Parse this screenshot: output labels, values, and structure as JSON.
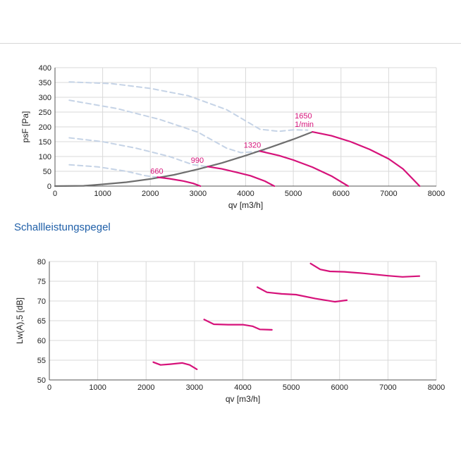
{
  "section_title": "Schallleistungspegel",
  "colors": {
    "curve": "#d6127a",
    "system_line": "#6e6e6e",
    "dashed": "#c5d3e6",
    "grid": "#d9d9d9",
    "label": "#d6127a",
    "title": "#1f5fa8"
  },
  "chart_data": [
    {
      "type": "line",
      "title": "",
      "xlabel": "qv [m3/h]",
      "ylabel": "psF [Pa]",
      "xlim": [
        0,
        8000
      ],
      "ylim": [
        0,
        400
      ],
      "grid": true,
      "xticks": [
        "0",
        "1000",
        "2000",
        "3000",
        "4000",
        "5000",
        "6000",
        "7000",
        "8000"
      ],
      "yticks": [
        "0",
        "50",
        "100",
        "150",
        "200",
        "250",
        "300",
        "350",
        "400"
      ],
      "series": [
        {
          "name": "660",
          "style": "solid",
          "points": [
            [
              2150,
              30
            ],
            [
              2400,
              25
            ],
            [
              2700,
              17
            ],
            [
              2900,
              9
            ],
            [
              3050,
              0
            ]
          ]
        },
        {
          "name": "990",
          "style": "solid",
          "points": [
            [
              3200,
              66
            ],
            [
              3500,
              58
            ],
            [
              3800,
              47
            ],
            [
              4100,
              35
            ],
            [
              4400,
              17
            ],
            [
              4600,
              0
            ]
          ]
        },
        {
          "name": "1320",
          "style": "solid",
          "points": [
            [
              4300,
              118
            ],
            [
              4700,
              103
            ],
            [
              5000,
              88
            ],
            [
              5400,
              64
            ],
            [
              5800,
              34
            ],
            [
              6150,
              0
            ]
          ]
        },
        {
          "name": "1650",
          "style": "solid",
          "points": [
            [
              5400,
              183
            ],
            [
              5800,
              170
            ],
            [
              6200,
              150
            ],
            [
              6600,
              124
            ],
            [
              7000,
              92
            ],
            [
              7300,
              58
            ],
            [
              7650,
              0
            ]
          ]
        },
        {
          "name": "",
          "style": "system",
          "points": [
            [
              0,
              0
            ],
            [
              600,
              1
            ],
            [
              1000,
              6
            ],
            [
              1500,
              13
            ],
            [
              2000,
              24
            ],
            [
              2500,
              38
            ],
            [
              3000,
              57
            ],
            [
              3500,
              78
            ],
            [
              4000,
              103
            ],
            [
              4500,
              130
            ],
            [
              5000,
              158
            ],
            [
              5400,
              183
            ]
          ]
        },
        {
          "name": "",
          "style": "dashed",
          "points": [
            [
              300,
              352
            ],
            [
              1200,
              346
            ],
            [
              2000,
              330
            ],
            [
              2800,
              305
            ],
            [
              3600,
              258
            ],
            [
              4300,
              192
            ],
            [
              4700,
              185
            ],
            [
              5000,
              190
            ],
            [
              5300,
              189
            ]
          ]
        },
        {
          "name": "",
          "style": "dashed",
          "points": [
            [
              300,
              290
            ],
            [
              1300,
              262
            ],
            [
              2200,
              225
            ],
            [
              3000,
              182
            ],
            [
              3600,
              128
            ],
            [
              3900,
              113
            ],
            [
              4200,
              116
            ],
            [
              4400,
              118
            ]
          ]
        },
        {
          "name": "",
          "style": "dashed",
          "points": [
            [
              300,
              163
            ],
            [
              1000,
              150
            ],
            [
              1700,
              128
            ],
            [
              2400,
              100
            ],
            [
              2900,
              72
            ],
            [
              3200,
              66
            ]
          ]
        },
        {
          "name": "",
          "style": "dashed",
          "points": [
            [
              300,
              72
            ],
            [
              900,
              65
            ],
            [
              1500,
              50
            ],
            [
              1900,
              35
            ],
            [
              2150,
              30
            ]
          ]
        }
      ],
      "annotations": [
        {
          "text": "660",
          "x": 2000,
          "y": 42
        },
        {
          "text": "990",
          "x": 2850,
          "y": 78
        },
        {
          "text": "1320",
          "x": 3960,
          "y": 130
        },
        {
          "text": "1650",
          "x": 5030,
          "y": 228
        },
        {
          "text": "1/min",
          "x": 5030,
          "y": 200
        }
      ]
    },
    {
      "type": "line",
      "title": "",
      "xlabel": "qv [m3/h]",
      "ylabel": "Lw(A),5 [dB]",
      "xlim": [
        0,
        8000
      ],
      "ylim": [
        50,
        80
      ],
      "grid": true,
      "xticks": [
        "0",
        "1000",
        "2000",
        "3000",
        "4000",
        "5000",
        "6000",
        "7000",
        "8000"
      ],
      "yticks": [
        "50",
        "55",
        "60",
        "65",
        "70",
        "75",
        "80"
      ],
      "series": [
        {
          "name": "",
          "points": [
            [
              2150,
              54.5
            ],
            [
              2300,
              53.8
            ],
            [
              2500,
              54.0
            ],
            [
              2750,
              54.3
            ],
            [
              2900,
              53.8
            ],
            [
              3050,
              52.7
            ]
          ]
        },
        {
          "name": "",
          "points": [
            [
              3200,
              65.3
            ],
            [
              3400,
              64.1
            ],
            [
              3700,
              64.0
            ],
            [
              4000,
              64.0
            ],
            [
              4200,
              63.6
            ],
            [
              4350,
              62.8
            ],
            [
              4600,
              62.7
            ]
          ]
        },
        {
          "name": "",
          "points": [
            [
              4300,
              73.5
            ],
            [
              4500,
              72.2
            ],
            [
              4800,
              71.8
            ],
            [
              5100,
              71.6
            ],
            [
              5500,
              70.6
            ],
            [
              5900,
              69.8
            ],
            [
              6150,
              70.2
            ]
          ]
        },
        {
          "name": "",
          "points": [
            [
              5400,
              79.5
            ],
            [
              5600,
              78.0
            ],
            [
              5800,
              77.5
            ],
            [
              6100,
              77.4
            ],
            [
              6500,
              77.0
            ],
            [
              7000,
              76.4
            ],
            [
              7300,
              76.1
            ],
            [
              7650,
              76.3
            ]
          ]
        }
      ]
    }
  ]
}
